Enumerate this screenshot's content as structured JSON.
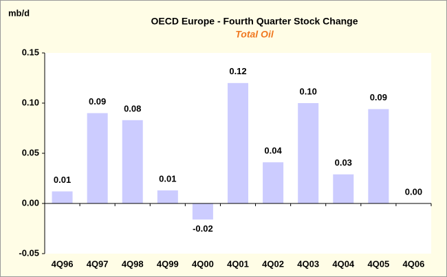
{
  "chart_data": {
    "type": "bar",
    "title": "OECD Europe - Fourth Quarter Stock Change",
    "subtitle": "Total Oil",
    "ylabel": "mb/d",
    "categories": [
      "4Q96",
      "4Q97",
      "4Q98",
      "4Q99",
      "4Q00",
      "4Q01",
      "4Q02",
      "4Q03",
      "4Q04",
      "4Q05",
      "4Q06"
    ],
    "values": [
      0.012,
      0.09,
      0.083,
      0.013,
      -0.016,
      0.12,
      0.041,
      0.1,
      0.029,
      0.094,
      0.0
    ],
    "value_labels": [
      "0.01",
      "0.09",
      "0.08",
      "0.01",
      "-0.02",
      "0.12",
      "0.04",
      "0.10",
      "0.03",
      "0.09",
      "0.00"
    ],
    "color": "#ccccff",
    "ylim": [
      -0.05,
      0.15
    ],
    "yticks": [
      {
        "value": -0.05,
        "label": "-0.05"
      },
      {
        "value": 0,
        "label": "0.00"
      },
      {
        "value": 0.05,
        "label": "0.05"
      },
      {
        "value": 0.1,
        "label": "0.10"
      },
      {
        "value": 0.15,
        "label": "0.15"
      }
    ],
    "grid": false
  }
}
